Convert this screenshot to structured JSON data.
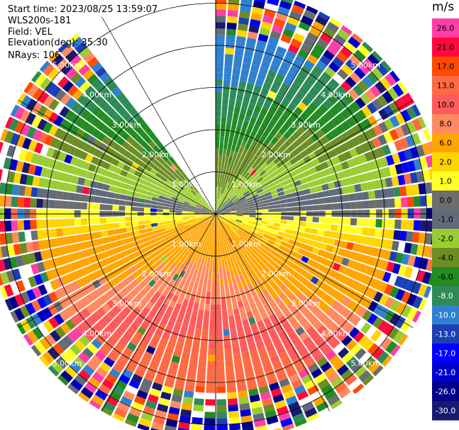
{
  "header": {
    "start_time": "Start time: 2023/08/25 13:59:07",
    "instrument": "WLS200s-181",
    "field": "Field: VEL",
    "elevation": "Elevation(deg): 35.30",
    "nrays": "NRays: 106"
  },
  "chart_data": {
    "type": "heatmap",
    "projection": "polar PPI scan",
    "field": "VEL",
    "units": "m/s",
    "colorbar_title": "m/s",
    "colorbar_ticks": [
      "26.0",
      "21.0",
      "17.0",
      "13.0",
      "10.0",
      "8.0",
      "6.0",
      "2.0",
      "1.0",
      "0.0",
      "-1.0",
      "-2.0",
      "-4.0",
      "-6.0",
      "-8.0",
      "-10.0",
      "-13.0",
      "-17.0",
      "-21.0",
      "-26.0",
      "-30.0"
    ],
    "range_ring_labels": [
      "1.00km",
      "2.00km",
      "3.00km",
      "4.00km",
      "5.00km"
    ],
    "range_rings_km": [
      1,
      2,
      3,
      4,
      5
    ],
    "max_range_km": 5.4,
    "gap_sector_azimuth_deg": [
      -40,
      0
    ],
    "colors": {
      "v26": "#ff3ea7",
      "v21": "#ff0a3a",
      "v17": "#ff4a00",
      "v13": "#ff6a43",
      "v10": "#ff5b5b",
      "v8": "#ff8a60",
      "v6": "#ffa500",
      "v2": "#ffd500",
      "v1": "#ffff25",
      "v0": "#6d6d6d",
      "vm1": "#5f6b7a",
      "vm2": "#9acd32",
      "vm4": "#6b8e23",
      "vm6": "#228b22",
      "vm8": "#2e8b57",
      "vm10": "#3080d0",
      "vm13": "#1c3fb4",
      "vm17": "#0000ff",
      "vm21": "#0000cd",
      "vm26": "#00008b",
      "vm30": "#191970"
    }
  }
}
